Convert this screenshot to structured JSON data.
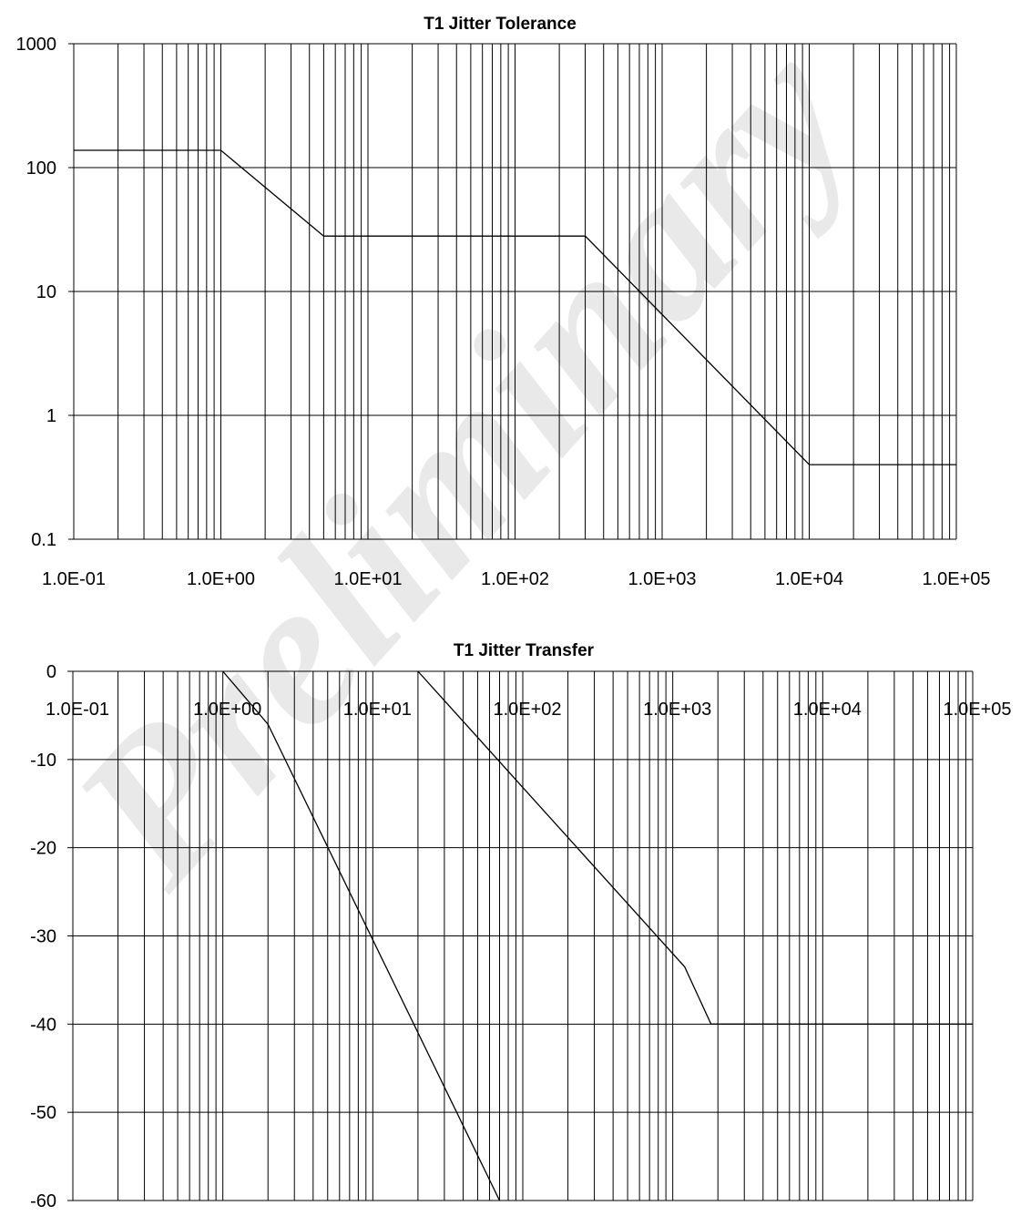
{
  "watermark": "Preliminary",
  "colors": {
    "line": "#000000",
    "grid": "#000000",
    "watermark": "#e9e9e9"
  },
  "chart_data": [
    {
      "type": "line",
      "title": "T1 Jitter Tolerance",
      "xlabel": "",
      "ylabel": "",
      "x_scale": "log",
      "y_scale": "log",
      "xlim": [
        0.1,
        100000
      ],
      "ylim": [
        0.1,
        1000
      ],
      "grid": true,
      "x_tick_labels": [
        "1.0E-01",
        "1.0E+00",
        "1.0E+01",
        "1.0E+02",
        "1.0E+03",
        "1.0E+04",
        "1.0E+05"
      ],
      "y_tick_labels": [
        "0.1",
        "1",
        "10",
        "100",
        "1000"
      ],
      "series": [
        {
          "x": [
            0.1,
            1,
            5,
            300,
            10000,
            100000
          ],
          "y": [
            138,
            138,
            28,
            28,
            0.4,
            0.4
          ]
        }
      ]
    },
    {
      "type": "line",
      "title": "T1 Jitter Transfer",
      "xlabel": "",
      "ylabel": "",
      "x_scale": "log",
      "y_scale": "linear",
      "xlim": [
        0.1,
        100000
      ],
      "ylim": [
        -60,
        0
      ],
      "grid": true,
      "x_tick_labels": [
        "1.0E-01",
        "1.0E+00",
        "1.0E+01",
        "1.0E+02",
        "1.0E+03",
        "1.0E+04",
        "1.0E+05"
      ],
      "y_tick_labels": [
        "0",
        "-10",
        "-20",
        "-30",
        "-40",
        "-50",
        "-60"
      ],
      "series": [
        {
          "x": [
            1,
            2,
            70
          ],
          "y": [
            0,
            -6,
            -60
          ]
        },
        {
          "x": [
            20,
            1200,
            1800,
            100000
          ],
          "y": [
            0,
            -33.5,
            -40,
            -40
          ]
        }
      ]
    }
  ]
}
